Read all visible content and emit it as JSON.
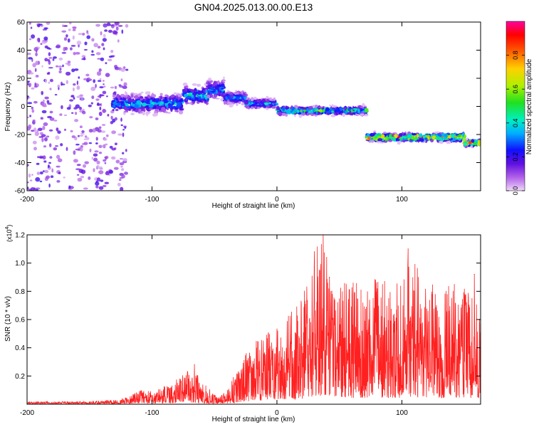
{
  "page": {
    "title": "GN04.2025.013.00.00.E13"
  },
  "chart_data": [
    {
      "type": "heatmap",
      "xlabel": "Height of straight line (km)",
      "ylabel": "Frequency (Hz)",
      "xlim": [
        -200,
        163
      ],
      "ylim": [
        -60,
        60
      ],
      "x_ticks": [
        {
          "value": -200,
          "label": "-200"
        },
        {
          "value": -100,
          "label": "-100"
        },
        {
          "value": 0,
          "label": "0"
        },
        {
          "value": 100,
          "label": "100"
        }
      ],
      "y_ticks": [
        {
          "value": -60,
          "label": "-60"
        },
        {
          "value": -40,
          "label": "-40"
        },
        {
          "value": -20,
          "label": "-20"
        },
        {
          "value": 0,
          "label": "0"
        },
        {
          "value": 20,
          "label": "20"
        },
        {
          "value": 40,
          "label": "40"
        },
        {
          "value": 60,
          "label": "60"
        }
      ],
      "colorbar": {
        "label": "Normalized spectral amplitude",
        "range": [
          0,
          1
        ],
        "ticks": [
          {
            "value": 0.0,
            "label": "0.0"
          },
          {
            "value": 0.2,
            "label": "0.2"
          },
          {
            "value": 0.4,
            "label": "0.4"
          },
          {
            "value": 0.6,
            "label": "0.6"
          },
          {
            "value": 0.8,
            "label": "0.8"
          }
        ],
        "colormap": [
          "#f0d8fa",
          "#b060e8",
          "#6010e0",
          "#1010ff",
          "#00b0ff",
          "#00f0c0",
          "#20e020",
          "#b0f000",
          "#ffd000",
          "#ff6000",
          "#ff0000",
          "#ff00a0"
        ]
      },
      "segments": [
        {
          "x_start": -200,
          "x_end": -120,
          "center_freq": 0,
          "spread": 60,
          "amplitude": 0.15
        },
        {
          "x_start": -132,
          "x_end": -75,
          "center_freq": 2,
          "spread": 6,
          "amplitude": 0.35
        },
        {
          "x_start": -75,
          "x_end": -55,
          "center_freq": 8,
          "spread": 6,
          "amplitude": 0.4
        },
        {
          "x_start": -55,
          "x_end": -42,
          "center_freq": 12,
          "spread": 6,
          "amplitude": 0.35
        },
        {
          "x_start": -42,
          "x_end": -25,
          "center_freq": 6,
          "spread": 4,
          "amplitude": 0.3
        },
        {
          "x_start": -25,
          "x_end": 0,
          "center_freq": 2,
          "spread": 3,
          "amplitude": 0.35
        },
        {
          "x_start": 0,
          "x_end": 72,
          "center_freq": -3,
          "spread": 2.5,
          "amplitude": 0.5
        },
        {
          "x_start": 72,
          "x_end": 150,
          "center_freq": -22,
          "spread": 2.5,
          "amplitude": 0.75
        },
        {
          "x_start": 150,
          "x_end": 163,
          "center_freq": -26,
          "spread": 2,
          "amplitude": 0.85
        }
      ]
    },
    {
      "type": "line",
      "xlabel": "Height of straight line (km)",
      "ylabel": "SNR (10 * v/v)",
      "scale_label": "(x10",
      "scale_exponent": "4",
      "scale_suffix": ")",
      "xlim": [
        -200,
        163
      ],
      "ylim": [
        0,
        1.2
      ],
      "x_ticks": [
        {
          "value": -200,
          "label": "-200"
        },
        {
          "value": -100,
          "label": "-100"
        },
        {
          "value": 0,
          "label": "0"
        },
        {
          "value": 100,
          "label": "100"
        }
      ],
      "y_ticks": [
        {
          "value": 0.2,
          "label": "0.2"
        },
        {
          "value": 0.4,
          "label": "0.4"
        },
        {
          "value": 0.6,
          "label": "0.6"
        },
        {
          "value": 0.8,
          "label": "0.8"
        },
        {
          "value": 1.0,
          "label": "1.0"
        },
        {
          "value": 1.2,
          "label": "1.2"
        }
      ],
      "series": [
        {
          "color": "#ff2020",
          "envelope": [
            [
              -200,
              0.02
            ],
            [
              -160,
              0.02
            ],
            [
              -130,
              0.03
            ],
            [
              -120,
              0.05
            ],
            [
              -110,
              0.1
            ],
            [
              -100,
              0.1
            ],
            [
              -90,
              0.13
            ],
            [
              -80,
              0.18
            ],
            [
              -70,
              0.25
            ],
            [
              -62,
              0.2
            ],
            [
              -55,
              0.12
            ],
            [
              -48,
              0.05
            ],
            [
              -40,
              0.1
            ],
            [
              -30,
              0.3
            ],
            [
              -20,
              0.45
            ],
            [
              -10,
              0.55
            ],
            [
              0,
              0.6
            ],
            [
              10,
              0.65
            ],
            [
              20,
              0.75
            ],
            [
              30,
              1.1
            ],
            [
              37,
              1.2
            ],
            [
              45,
              0.95
            ],
            [
              60,
              0.9
            ],
            [
              80,
              0.9
            ],
            [
              100,
              0.85
            ],
            [
              105,
              1.1
            ],
            [
              120,
              0.85
            ],
            [
              140,
              0.85
            ],
            [
              155,
              0.9
            ],
            [
              163,
              0.85
            ]
          ],
          "peaks": [
            {
              "x": 37,
              "y": 1.2
            },
            {
              "x": 30,
              "y": 1.08
            },
            {
              "x": 105,
              "y": 1.1
            },
            {
              "x": 42,
              "y": 0.9
            },
            {
              "x": 158,
              "y": 0.92
            },
            {
              "x": -66,
              "y": 0.28
            }
          ]
        }
      ]
    }
  ]
}
